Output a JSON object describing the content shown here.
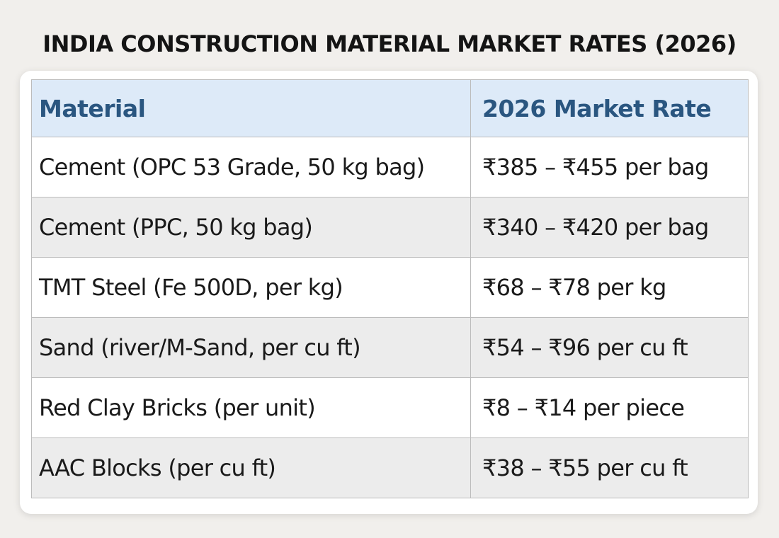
{
  "title": "INDIA CONSTRUCTION MATERIAL MARKET RATES (2026)",
  "table": {
    "headers": [
      "Material",
      "2026 Market Rate"
    ],
    "rows": [
      {
        "material": "Cement (OPC 53 Grade, 50 kg bag)",
        "rate": "₹385 – ₹455 per bag"
      },
      {
        "material": "Cement (PPC, 50 kg bag)",
        "rate": "₹340 – ₹420 per bag"
      },
      {
        "material": "TMT Steel (Fe 500D, per kg)",
        "rate": "₹68 – ₹78 per kg"
      },
      {
        "material": "Sand (river/M-Sand, per cu ft)",
        "rate": "₹54 – ₹96 per cu ft"
      },
      {
        "material": "Red Clay Bricks (per unit)",
        "rate": "₹8 – ₹14 per piece"
      },
      {
        "material": "AAC Blocks (per cu ft)",
        "rate": "₹38 – ₹55 per cu ft"
      }
    ]
  },
  "colors": {
    "background": "#f1efec",
    "header_bg": "#ddeaf8",
    "header_text": "#2a5680",
    "stripe_bg": "#ececec",
    "border": "#bcbcbc"
  }
}
